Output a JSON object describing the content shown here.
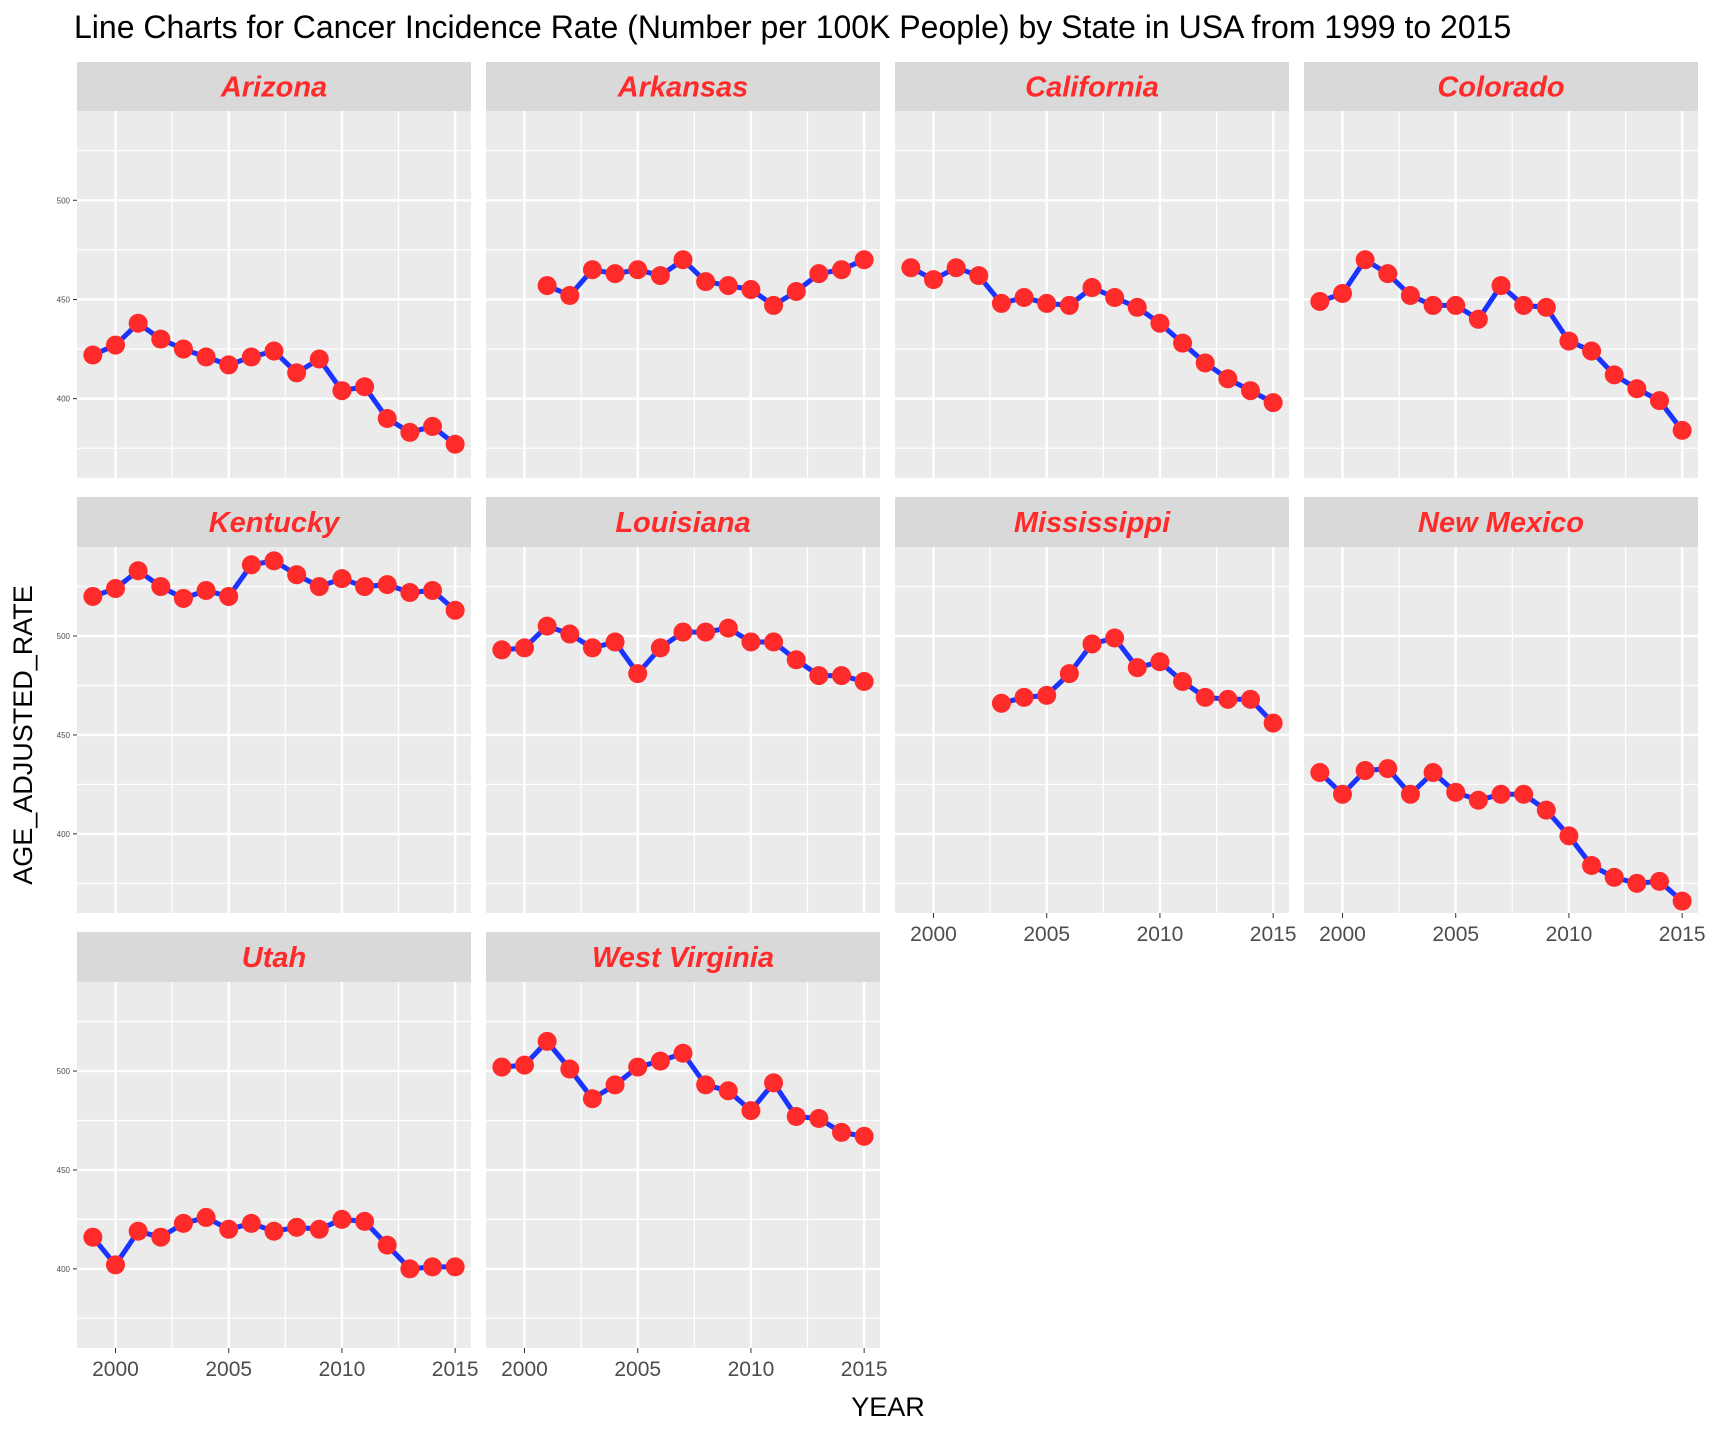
{
  "chart_data": {
    "type": "line",
    "title": "Line Charts for Cancer Incidence Rate (Number per 100K People) by State in USA from 1999 to 2015",
    "xlabel": "YEAR",
    "ylabel": "AGE_ADJUSTED_RATE",
    "xlim": [
      1998.3,
      2015.7
    ],
    "ylim": [
      360,
      545
    ],
    "xticks": [
      2000,
      2005,
      2010,
      2015
    ],
    "yticks": [
      400,
      450,
      500
    ],
    "grid": true,
    "legend": "none",
    "colors": {
      "panel_bg": "#ebebeb",
      "strip_bg": "#d9d9d9",
      "strip_text": "#ff2a2a",
      "grid": "#ffffff",
      "line": "#1a33ff",
      "point": "#ff2a2a",
      "tick_text": "#4d4d4d"
    },
    "facets": [
      {
        "name": "Arizona",
        "x": [
          1999,
          2000,
          2001,
          2002,
          2003,
          2004,
          2005,
          2006,
          2007,
          2008,
          2009,
          2010,
          2011,
          2012,
          2013,
          2014,
          2015
        ],
        "y": [
          422,
          427,
          438,
          430,
          425,
          421,
          417,
          421,
          424,
          413,
          420,
          404,
          406,
          390,
          383,
          386,
          377
        ]
      },
      {
        "name": "Arkansas",
        "x": [
          2001,
          2002,
          2003,
          2004,
          2005,
          2006,
          2007,
          2008,
          2009,
          2010,
          2011,
          2012,
          2013,
          2014,
          2015
        ],
        "y": [
          457,
          452,
          465,
          463,
          465,
          462,
          470,
          459,
          457,
          455,
          447,
          454,
          463,
          465,
          470
        ]
      },
      {
        "name": "California",
        "x": [
          1999,
          2000,
          2001,
          2002,
          2003,
          2004,
          2005,
          2006,
          2007,
          2008,
          2009,
          2010,
          2011,
          2012,
          2013,
          2014,
          2015
        ],
        "y": [
          466,
          460,
          466,
          462,
          448,
          451,
          448,
          447,
          456,
          451,
          446,
          438,
          428,
          418,
          410,
          404,
          398
        ]
      },
      {
        "name": "Colorado",
        "x": [
          1999,
          2000,
          2001,
          2002,
          2003,
          2004,
          2005,
          2006,
          2007,
          2008,
          2009,
          2010,
          2011,
          2012,
          2013,
          2014,
          2015
        ],
        "y": [
          449,
          453,
          470,
          463,
          452,
          447,
          447,
          440,
          457,
          447,
          446,
          429,
          424,
          412,
          405,
          399,
          384
        ]
      },
      {
        "name": "Kentucky",
        "x": [
          1999,
          2000,
          2001,
          2002,
          2003,
          2004,
          2005,
          2006,
          2007,
          2008,
          2009,
          2010,
          2011,
          2012,
          2013,
          2014,
          2015
        ],
        "y": [
          520,
          524,
          533,
          525,
          519,
          523,
          520,
          536,
          538,
          531,
          525,
          529,
          525,
          526,
          522,
          523,
          513
        ]
      },
      {
        "name": "Louisiana",
        "x": [
          1999,
          2000,
          2001,
          2002,
          2003,
          2004,
          2005,
          2006,
          2007,
          2008,
          2009,
          2010,
          2011,
          2012,
          2013,
          2014,
          2015
        ],
        "y": [
          493,
          494,
          505,
          501,
          494,
          497,
          481,
          494,
          502,
          502,
          504,
          497,
          497,
          488,
          480,
          480,
          477
        ]
      },
      {
        "name": "Mississippi",
        "x": [
          2003,
          2004,
          2005,
          2006,
          2007,
          2008,
          2009,
          2010,
          2011,
          2012,
          2013,
          2014,
          2015
        ],
        "y": [
          466,
          469,
          470,
          481,
          496,
          499,
          484,
          487,
          477,
          469,
          468,
          468,
          456
        ]
      },
      {
        "name": "New Mexico",
        "x": [
          1999,
          2000,
          2001,
          2002,
          2003,
          2004,
          2005,
          2006,
          2007,
          2008,
          2009,
          2010,
          2011,
          2012,
          2013,
          2014,
          2015
        ],
        "y": [
          431,
          420,
          432,
          433,
          420,
          431,
          421,
          417,
          420,
          420,
          412,
          399,
          384,
          378,
          375,
          376,
          366
        ]
      },
      {
        "name": "Utah",
        "x": [
          1999,
          2000,
          2001,
          2002,
          2003,
          2004,
          2005,
          2006,
          2007,
          2008,
          2009,
          2010,
          2011,
          2012,
          2013,
          2014,
          2015
        ],
        "y": [
          416,
          402,
          419,
          416,
          423,
          426,
          420,
          423,
          419,
          421,
          420,
          425,
          424,
          412,
          400,
          401,
          401
        ]
      },
      {
        "name": "West Virginia",
        "x": [
          1999,
          2000,
          2001,
          2002,
          2003,
          2004,
          2005,
          2006,
          2007,
          2008,
          2009,
          2010,
          2011,
          2012,
          2013,
          2014,
          2015
        ],
        "y": [
          502,
          503,
          515,
          501,
          486,
          493,
          502,
          505,
          509,
          493,
          490,
          480,
          494,
          477,
          476,
          469,
          467
        ]
      }
    ]
  }
}
